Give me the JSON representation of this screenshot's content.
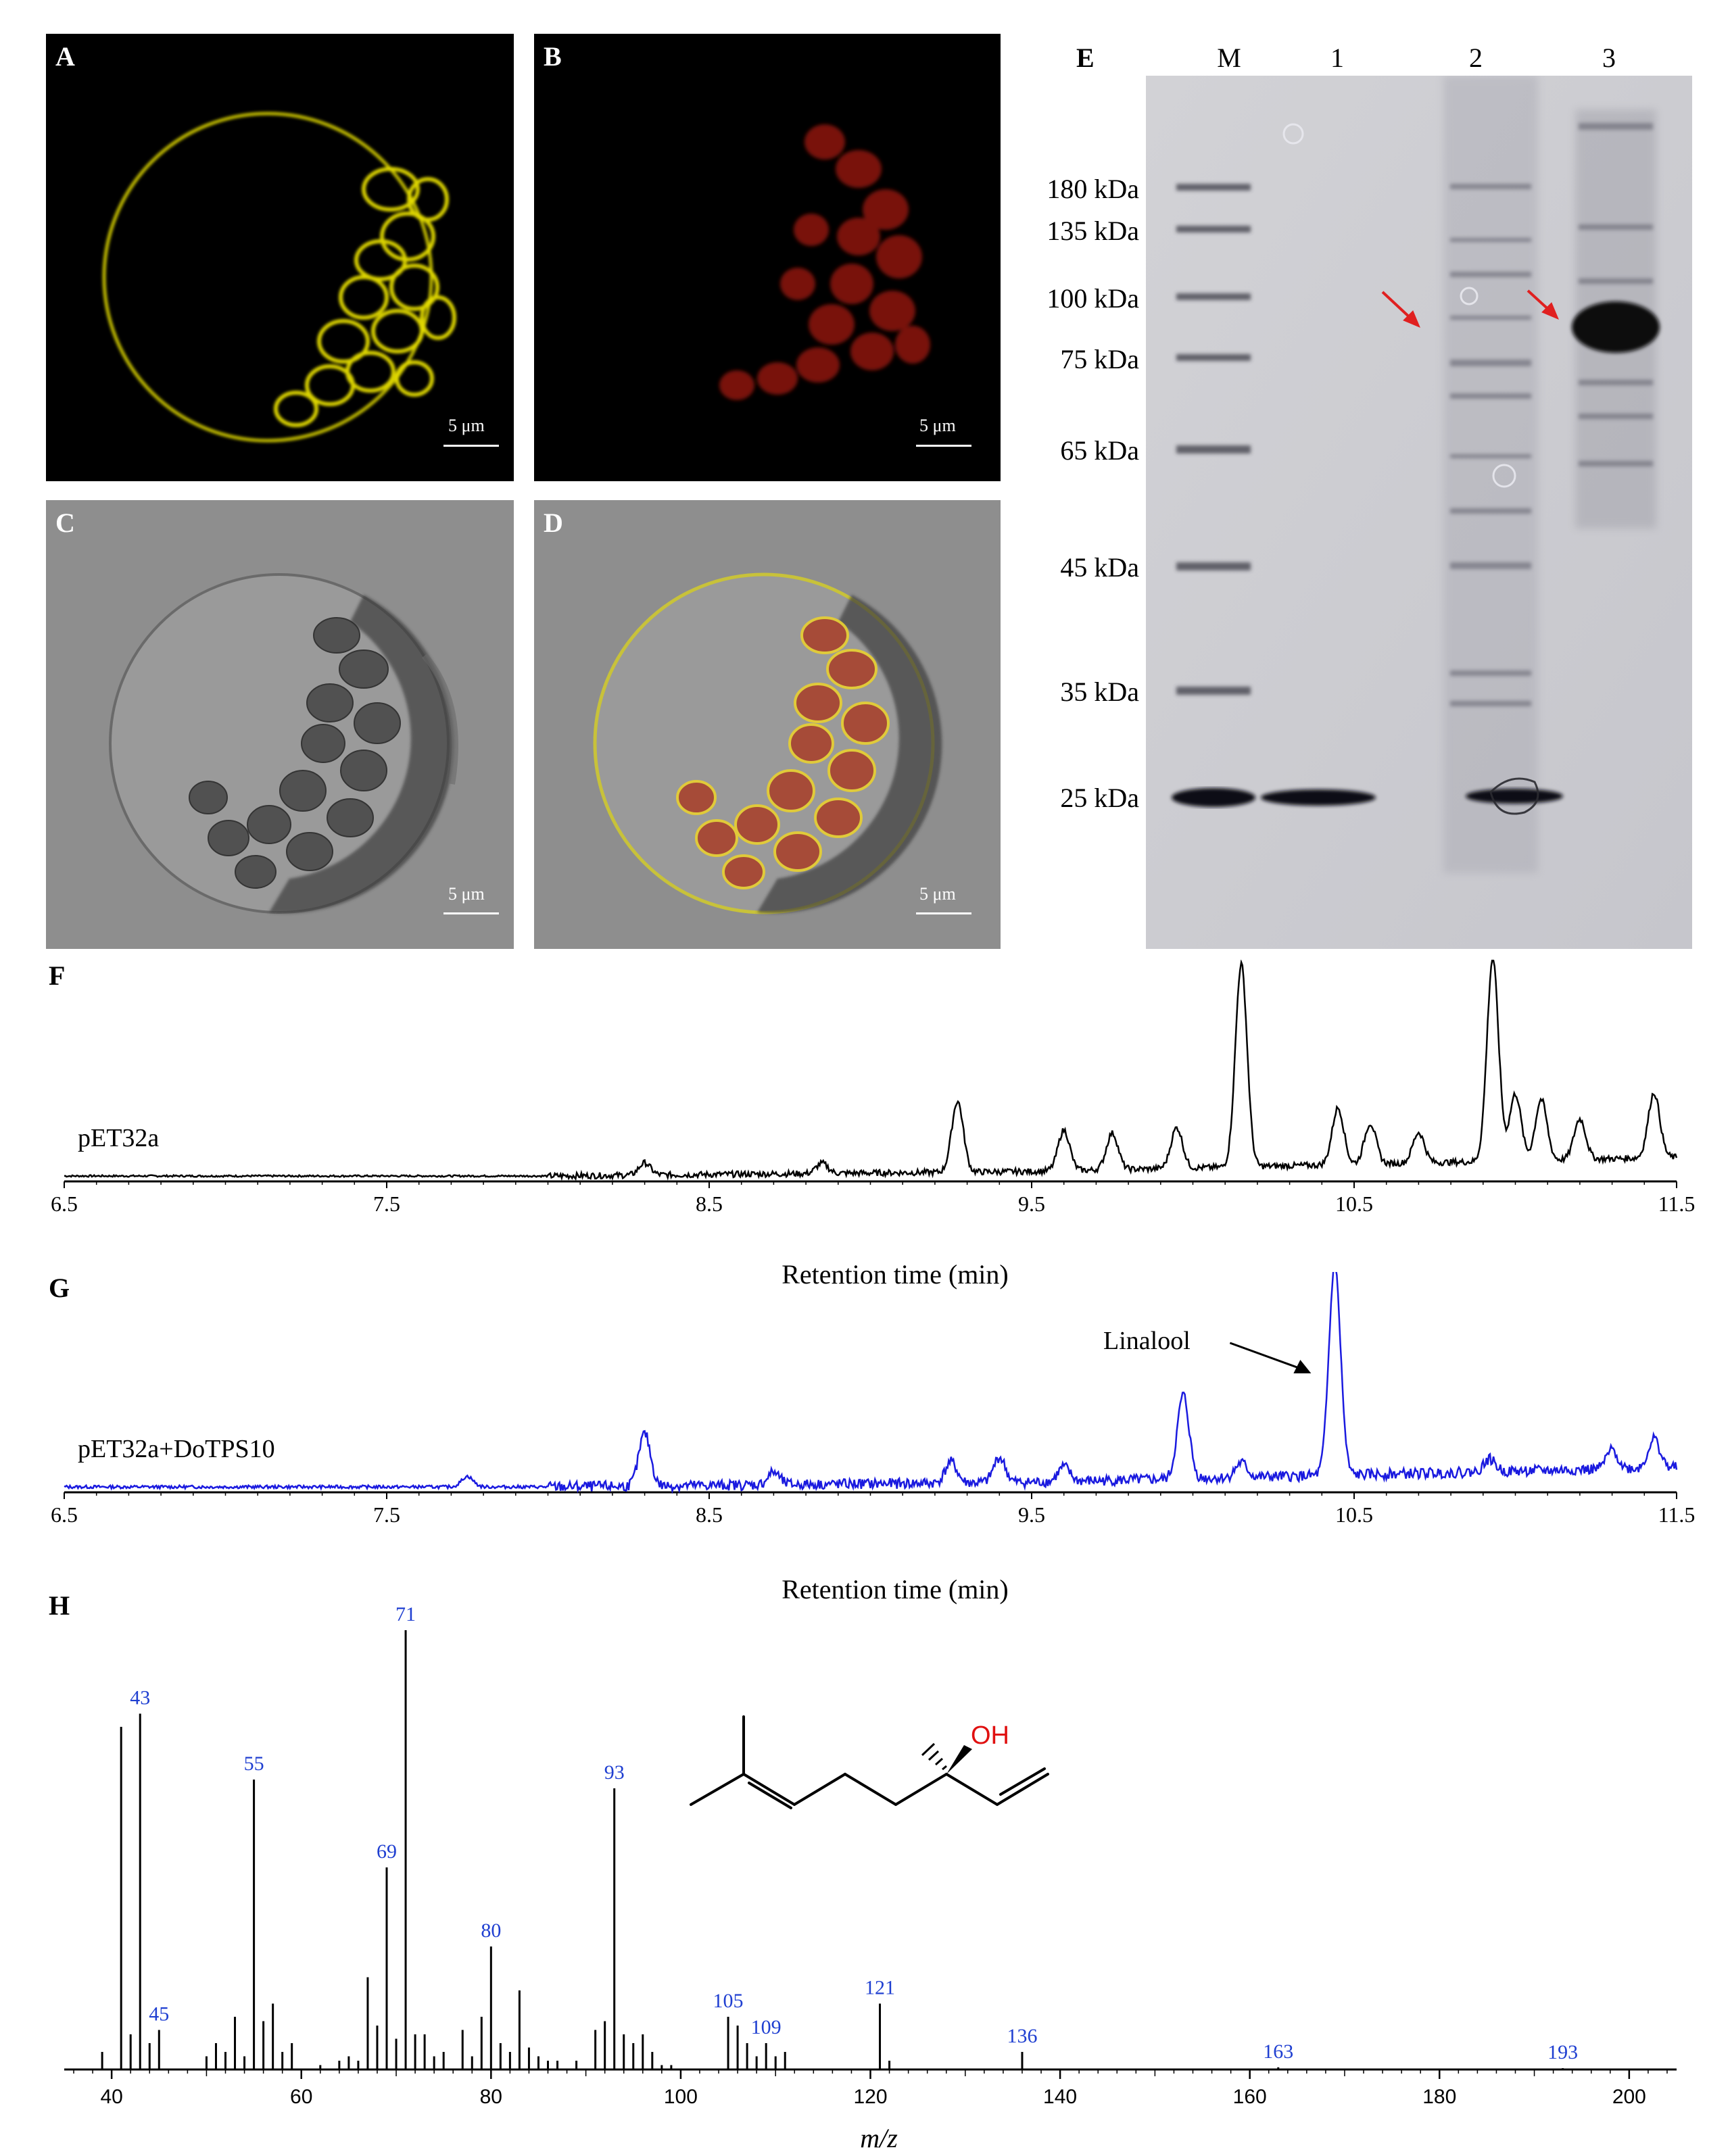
{
  "panels": {
    "A": {
      "letter": "A",
      "scale_label": "5 μm"
    },
    "B": {
      "letter": "B",
      "scale_label": "5 μm"
    },
    "C": {
      "letter": "C",
      "scale_label": "5 μm"
    },
    "D": {
      "letter": "D",
      "scale_label": "5 μm"
    },
    "E": {
      "letter": "E"
    },
    "F": {
      "letter": "F",
      "trace_label": "pET32a"
    },
    "G": {
      "letter": "G",
      "trace_label": "pET32a+DoTPS10",
      "annotation": "Linalool"
    },
    "H": {
      "letter": "H",
      "oh_label": "OH"
    }
  },
  "gel": {
    "lanes": [
      "M",
      "1",
      "2",
      "3"
    ],
    "markers": [
      "180 kDa",
      "135 kDa",
      "100 kDa",
      "75 kDa",
      "65 kDa",
      "45 kDa",
      "35 kDa",
      "25 kDa"
    ]
  },
  "colors": {
    "yellow_fluor": "#e8e000",
    "red_fluor": "#a81a10",
    "trace_F": "#000000",
    "trace_G": "#1a1adf",
    "ms_label": "#1f3fd1",
    "arrow_red": "#e02020"
  },
  "chart_data": [
    {
      "id": "F",
      "type": "line",
      "series": [
        {
          "name": "pET32a"
        }
      ],
      "xlabel": "Retention time (min)",
      "xlim": [
        6.5,
        11.5
      ],
      "xticks": [
        "6.5",
        "7.5",
        "8.5",
        "9.5",
        "10.5",
        "11.5"
      ],
      "peaks": [
        [
          8.3,
          0.06
        ],
        [
          8.85,
          0.05
        ],
        [
          9.27,
          0.35
        ],
        [
          9.6,
          0.2
        ],
        [
          9.75,
          0.18
        ],
        [
          9.95,
          0.2
        ],
        [
          10.15,
          1.0
        ],
        [
          10.45,
          0.28
        ],
        [
          10.55,
          0.2
        ],
        [
          10.7,
          0.15
        ],
        [
          10.93,
          1.0
        ],
        [
          11.0,
          0.33
        ],
        [
          11.08,
          0.3
        ],
        [
          11.2,
          0.2
        ],
        [
          11.43,
          0.32
        ]
      ]
    },
    {
      "id": "G",
      "type": "line",
      "series": [
        {
          "name": "pET32a+DoTPS10"
        }
      ],
      "xlabel": "Retention time (min)",
      "xlim": [
        6.5,
        11.5
      ],
      "xticks": [
        "6.5",
        "7.5",
        "8.5",
        "9.5",
        "10.5",
        "11.5"
      ],
      "peaks": [
        [
          7.75,
          0.05
        ],
        [
          8.3,
          0.25
        ],
        [
          8.7,
          0.06
        ],
        [
          9.25,
          0.1
        ],
        [
          9.4,
          0.12
        ],
        [
          9.6,
          0.07
        ],
        [
          9.97,
          0.4
        ],
        [
          10.15,
          0.07
        ],
        [
          10.44,
          1.0
        ],
        [
          10.92,
          0.06
        ],
        [
          11.3,
          0.09
        ],
        [
          11.43,
          0.14
        ]
      ],
      "annotation": {
        "text": "Linalool",
        "x": 10.44
      }
    },
    {
      "id": "H",
      "type": "bar",
      "xlabel": "m/z",
      "xlim": [
        35,
        205
      ],
      "xticks": [
        "40",
        "60",
        "80",
        "100",
        "120",
        "140",
        "160",
        "180",
        "200"
      ],
      "peaks": [
        [
          39,
          4
        ],
        [
          41,
          78
        ],
        [
          42,
          8
        ],
        [
          43,
          81
        ],
        [
          44,
          6
        ],
        [
          45,
          9
        ],
        [
          50,
          3
        ],
        [
          51,
          6
        ],
        [
          52,
          4
        ],
        [
          53,
          12
        ],
        [
          54,
          3
        ],
        [
          55,
          66
        ],
        [
          56,
          11
        ],
        [
          57,
          15
        ],
        [
          58,
          4
        ],
        [
          59,
          6
        ],
        [
          62,
          1
        ],
        [
          64,
          2
        ],
        [
          65,
          3
        ],
        [
          66,
          2
        ],
        [
          67,
          21
        ],
        [
          68,
          10
        ],
        [
          69,
          46
        ],
        [
          70,
          7
        ],
        [
          71,
          100
        ],
        [
          72,
          8
        ],
        [
          73,
          8
        ],
        [
          74,
          3
        ],
        [
          75,
          4
        ],
        [
          77,
          9
        ],
        [
          78,
          3
        ],
        [
          79,
          12
        ],
        [
          80,
          28
        ],
        [
          81,
          6
        ],
        [
          82,
          4
        ],
        [
          83,
          18
        ],
        [
          84,
          5
        ],
        [
          85,
          3
        ],
        [
          86,
          2
        ],
        [
          87,
          2
        ],
        [
          89,
          2
        ],
        [
          91,
          9
        ],
        [
          92,
          11
        ],
        [
          93,
          64
        ],
        [
          94,
          8
        ],
        [
          95,
          6
        ],
        [
          96,
          8
        ],
        [
          97,
          4
        ],
        [
          98,
          1
        ],
        [
          99,
          1
        ],
        [
          105,
          12
        ],
        [
          106,
          10
        ],
        [
          107,
          6
        ],
        [
          108,
          3
        ],
        [
          109,
          6
        ],
        [
          110,
          3
        ],
        [
          111,
          4
        ],
        [
          121,
          15
        ],
        [
          122,
          2
        ],
        [
          136,
          4
        ],
        [
          163,
          0.5
        ],
        [
          193,
          0.3
        ]
      ],
      "labeled_peaks": [
        "43",
        "45",
        "55",
        "69",
        "71",
        "80",
        "93",
        "105",
        "109",
        "121",
        "136",
        "163",
        "193"
      ]
    }
  ]
}
